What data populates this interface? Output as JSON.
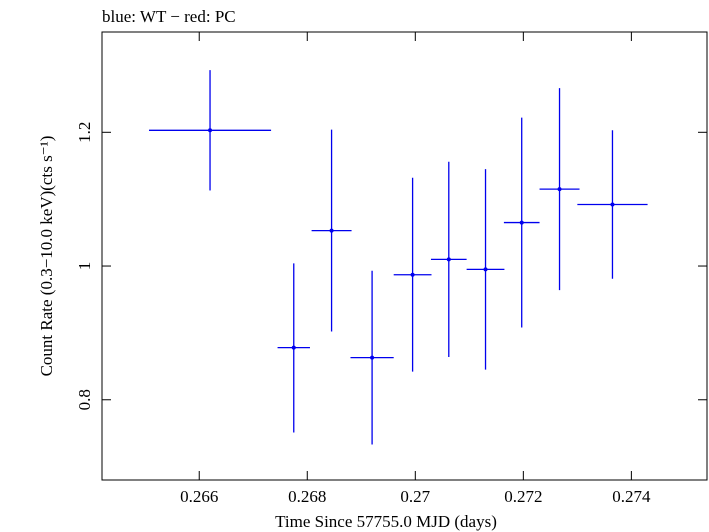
{
  "chart_data": {
    "type": "scatter",
    "title": "blue: WT − red: PC",
    "xlabel": "Time Since 57755.0 MJD (days)",
    "ylabel": "Count Rate (0.3−10.0 keV)(cts s⁻¹)",
    "xlim": [
      0.2642,
      0.2754
    ],
    "ylim": [
      0.68,
      1.35
    ],
    "x_ticks": [
      {
        "value": 0.266,
        "label": "0.266"
      },
      {
        "value": 0.268,
        "label": "0.268"
      },
      {
        "value": 0.27,
        "label": "0.27"
      },
      {
        "value": 0.272,
        "label": "0.272"
      },
      {
        "value": 0.274,
        "label": "0.274"
      }
    ],
    "y_ticks": [
      {
        "value": 0.8,
        "label": "0.8"
      },
      {
        "value": 1.0,
        "label": "1"
      },
      {
        "value": 1.2,
        "label": "1.2"
      }
    ],
    "grid": false,
    "series": [
      {
        "color": "#0000ee",
        "points": [
          {
            "x": 0.2662,
            "xerr": 0.00113,
            "y": 1.203,
            "yerr_lo": 0.09,
            "yerr_hi": 0.09
          },
          {
            "x": 0.26775,
            "xerr": 0.0003,
            "y": 0.878,
            "yerr_lo": 0.127,
            "yerr_hi": 0.126
          },
          {
            "x": 0.26845,
            "xerr": 0.00037,
            "y": 1.053,
            "yerr_lo": 0.151,
            "yerr_hi": 0.151
          },
          {
            "x": 0.2692,
            "xerr": 0.0004,
            "y": 0.863,
            "yerr_lo": 0.13,
            "yerr_hi": 0.13
          },
          {
            "x": 0.26995,
            "xerr": 0.00035,
            "y": 0.987,
            "yerr_lo": 0.145,
            "yerr_hi": 0.145
          },
          {
            "x": 0.27062,
            "xerr": 0.00033,
            "y": 1.01,
            "yerr_lo": 0.146,
            "yerr_hi": 0.146
          },
          {
            "x": 0.2713,
            "xerr": 0.00035,
            "y": 0.995,
            "yerr_lo": 0.15,
            "yerr_hi": 0.15
          },
          {
            "x": 0.27197,
            "xerr": 0.00033,
            "y": 1.065,
            "yerr_lo": 0.157,
            "yerr_hi": 0.157
          },
          {
            "x": 0.27267,
            "xerr": 0.00037,
            "y": 1.115,
            "yerr_lo": 0.151,
            "yerr_hi": 0.151
          },
          {
            "x": 0.27365,
            "xerr": 0.00065,
            "y": 1.092,
            "yerr_lo": 0.111,
            "yerr_hi": 0.111
          }
        ]
      }
    ]
  }
}
